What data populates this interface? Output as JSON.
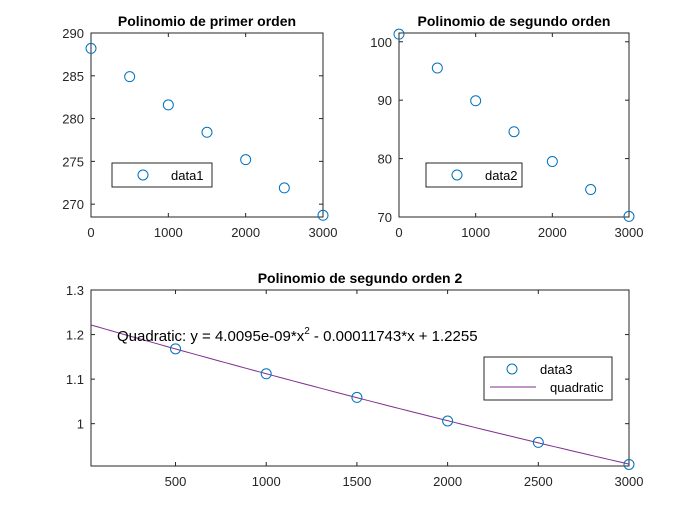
{
  "colors": {
    "marker": "#0072BD",
    "fit_line": "#7E2F8E",
    "axis": "#262626"
  },
  "chart_data": [
    {
      "type": "scatter",
      "title": "Polinomio de primer orden",
      "x": [
        0,
        500,
        1000,
        1500,
        2000,
        2500,
        3000
      ],
      "series": [
        {
          "name": "data1",
          "values": [
            288.2,
            284.9,
            281.6,
            278.4,
            275.2,
            271.9,
            268.7
          ]
        }
      ],
      "xlim": [
        0,
        3000
      ],
      "ylim": [
        268.5,
        290
      ],
      "xticks": [
        0,
        1000,
        2000,
        3000
      ],
      "xtick_labels": [
        "0",
        "1000",
        "2000",
        "3000"
      ],
      "yticks": [
        270,
        275,
        280,
        285,
        290
      ],
      "ytick_labels": [
        "270",
        "275",
        "280",
        "285",
        "290"
      ],
      "legend": {
        "entries": [
          "data1"
        ],
        "placement": "left-middle"
      },
      "grid": false
    },
    {
      "type": "scatter",
      "title": "Polinomio de segundo orden",
      "x": [
        0,
        500,
        1000,
        1500,
        2000,
        2500,
        3000
      ],
      "series": [
        {
          "name": "data2",
          "values": [
            101.3,
            95.5,
            89.9,
            84.6,
            79.5,
            74.7,
            70.1
          ]
        }
      ],
      "xlim": [
        0,
        3000
      ],
      "ylim": [
        70,
        101.5
      ],
      "xticks": [
        0,
        1000,
        2000,
        3000
      ],
      "xtick_labels": [
        "0",
        "1000",
        "2000",
        "3000"
      ],
      "yticks": [
        70,
        80,
        90,
        100
      ],
      "ytick_labels": [
        "70",
        "80",
        "90",
        "100"
      ],
      "legend": {
        "entries": [
          "data2"
        ],
        "placement": "left-middle"
      },
      "grid": false
    },
    {
      "type": "scatter",
      "title": "Polinomio de segundo orden 2",
      "x": [
        500,
        1000,
        1500,
        2000,
        2500,
        3000
      ],
      "series": [
        {
          "name": "data3",
          "values": [
            1.168,
            1.112,
            1.059,
            1.006,
            0.958,
            0.9085
          ]
        }
      ],
      "fit": {
        "name": "quadratic",
        "equation_label": "Quadratic:  y = 4.0095e-09*x",
        "equation_sup": "2",
        "equation_rest": " - 0.00011743*x + 1.2255",
        "coefficients": [
          4.0095e-09,
          -0.00011743,
          1.2255
        ]
      },
      "xlim": [
        34,
        3000
      ],
      "ylim": [
        0.905,
        1.3
      ],
      "xticks": [
        500,
        1000,
        1500,
        2000,
        2500,
        3000
      ],
      "xtick_labels": [
        "500",
        "1000",
        "1500",
        "2000",
        "2500",
        "3000"
      ],
      "yticks": [
        1,
        1.1,
        1.2,
        1.3
      ],
      "ytick_labels": [
        "1",
        "1.1",
        "1.2",
        "1.3"
      ],
      "legend": {
        "entries": [
          "data3",
          "quadratic"
        ],
        "placement": "right-middle"
      },
      "grid": false
    }
  ]
}
